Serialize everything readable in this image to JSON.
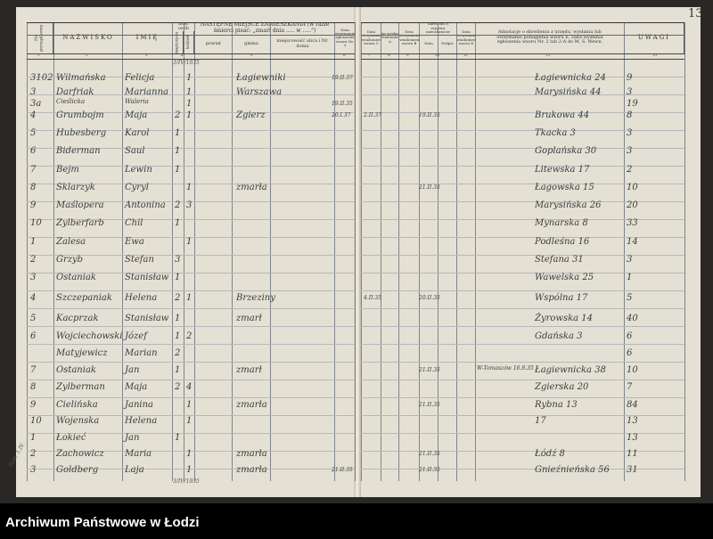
{
  "page_number": "13",
  "header": {
    "col1": "Nr porządkowy",
    "col2": "NAZWISKO",
    "col3": "IMIĘ",
    "col4": "Ilość osób",
    "col4_m": "mężczyzn",
    "col4_k": "kobiet",
    "col5": "NASTĘPNE MIEJSCE ZAMIESZKANIA (w razie śmierci pisać: „zmarł dnia ..... w .....“)",
    "col5_powiat": "powiat",
    "col5_gmina": "gmina",
    "col5_miejsc": "miejscowość ulica i Nr. domu",
    "col6": "Data otrzymania zgłoszenia wzoru Nr. 3",
    "col7": "Data otrzymania zawiadomienia wzoru C",
    "col8": "Data wysłania zawiadomienia A",
    "col9": "Data otrzymania zawiadomienia wzoru B",
    "col10": "Skreślono z rejestru mieszkańców",
    "col10_data": "Data",
    "col10_podpis": "Podpis",
    "col11": "Data otrzymania zawiadomienia wzoru D",
    "col12": "Adnotacje o skreśleniu z urzędu, wysłaniu lub otrzymaniu ponaglenia wzoru E. Data wysłania zgłoszenia wzoru Nr. 2 lub 2-A do M. S. Wewn.",
    "col13": "UWAGI",
    "numbers": [
      "1",
      "2",
      "3",
      "4",
      "5",
      "6",
      "7",
      "8",
      "9",
      "10",
      "11",
      "12",
      "13"
    ]
  },
  "top_stamp": "3/IV/1935",
  "bottom_stamp": "3/IV/1935",
  "margin_note": "Zam. 1.IV.",
  "rows": [
    {
      "no": "3102",
      "surname": "Wilmańska",
      "name": "Felicja",
      "m": "",
      "k": "1",
      "gmina": "Łagiewniki",
      "date6": "19.II.37",
      "c7": "",
      "c10": "",
      "addr": "Łagiewnicka 24",
      "house": "9"
    },
    {
      "no": "3",
      "surname": "Darfriak",
      "name": "Marianna",
      "m": "",
      "k": "1",
      "gmina": "Warszawa",
      "date6": "",
      "c7": "",
      "c10": "",
      "addr": "Marysińska 44",
      "house": "3"
    },
    {
      "no": "3a",
      "surname": "Cieślicka",
      "name": "Waleria",
      "m": "",
      "k": "1",
      "gmina": "",
      "date6": "19.II.35",
      "c7": "",
      "c10": "",
      "addr": "",
      "house": "19"
    },
    {
      "no": "4",
      "surname": "Grumbojm",
      "name": "Maja",
      "m": "2",
      "k": "1",
      "gmina": "Zgierz",
      "date6": "20.I.37",
      "c7": "2.II.37",
      "c10": "19.II.35",
      "addr": "Brukowa 44",
      "house": "8"
    },
    {
      "no": "5",
      "surname": "Hubesberg",
      "name": "Karol",
      "m": "1",
      "k": "",
      "gmina": "",
      "date6": "",
      "c7": "",
      "c10": "",
      "addr": "Tkacka 3",
      "house": "3"
    },
    {
      "no": "6",
      "surname": "Biderman",
      "name": "Saul",
      "m": "1",
      "k": "",
      "gmina": "",
      "date6": "",
      "c7": "",
      "c10": "",
      "addr": "Goplańska 30",
      "house": "3"
    },
    {
      "no": "7",
      "surname": "Bejm",
      "name": "Lewin",
      "m": "1",
      "k": "",
      "gmina": "",
      "date6": "",
      "c7": "",
      "c10": "",
      "addr": "Litewska 17",
      "house": "2"
    },
    {
      "no": "8",
      "surname": "Sklarzyk",
      "name": "Cyryl",
      "m": "",
      "k": "1",
      "gmina": "zmarła",
      "date6": "",
      "c7": "",
      "c10": "21.II.35",
      "addr": "Łagowska 15",
      "house": "10"
    },
    {
      "no": "9",
      "surname": "Maślopera",
      "name": "Antonina",
      "m": "2",
      "k": "3",
      "gmina": "",
      "date6": "",
      "c7": "",
      "c10": "",
      "addr": "Marysińska 26",
      "house": "20"
    },
    {
      "no": "10",
      "surname": "Zylberfarb",
      "name": "Chil",
      "m": "1",
      "k": "",
      "gmina": "",
      "date6": "",
      "c7": "",
      "c10": "",
      "addr": "Mynarska 8",
      "house": "33"
    },
    {
      "no": "1",
      "surname": "Zalesa",
      "name": "Ewa",
      "m": "",
      "k": "1",
      "gmina": "",
      "date6": "",
      "c7": "",
      "c10": "",
      "addr": "Podleśna 16",
      "house": "14"
    },
    {
      "no": "2",
      "surname": "Grzyb",
      "name": "Stefan",
      "m": "3",
      "k": "",
      "gmina": "",
      "date6": "",
      "c7": "",
      "c10": "",
      "addr": "Stefana 31",
      "house": "3"
    },
    {
      "no": "3",
      "surname": "Ostaniak",
      "name": "Stanisław",
      "m": "1",
      "k": "",
      "gmina": "",
      "date6": "",
      "c7": "",
      "c10": "",
      "addr": "Wawelska 25",
      "house": "1"
    },
    {
      "no": "4",
      "surname": "Szczepaniak",
      "name": "Helena",
      "m": "2",
      "k": "1",
      "gmina": "Brzeziny",
      "date6": "",
      "c7": "4.II.35",
      "c10": "20.II.35",
      "addr": "Wspólna 17",
      "house": "5"
    },
    {
      "no": "5",
      "surname": "Kacprzak",
      "name": "Stanisław",
      "m": "1",
      "k": "",
      "gmina": "zmarł",
      "date6": "",
      "c7": "",
      "c10": "",
      "addr": "Żyrowska 14",
      "house": "40"
    },
    {
      "no": "6",
      "surname": "Wojciechowski",
      "name": "Józef",
      "m": "1",
      "k": "2",
      "gmina": "",
      "date6": "",
      "c7": "",
      "c10": "",
      "addr": "Gdańska 3",
      "house": "6"
    },
    {
      "no": "",
      "surname": "Matyjewicz",
      "name": "Marian",
      "m": "2",
      "k": "",
      "gmina": "",
      "date6": "",
      "c7": "",
      "c10": "",
      "addr": "",
      "house": "6"
    },
    {
      "no": "7",
      "surname": "Ostaniak",
      "name": "Jan",
      "m": "1",
      "k": "",
      "gmina": "zmarł",
      "date6": "",
      "c7": "",
      "c10": "21.II.35",
      "addr": "Łagiewnicka 38",
      "house": "10",
      "note": "W-Tomaszów 16.8.35"
    },
    {
      "no": "8",
      "surname": "Zylberman",
      "name": "Maja",
      "m": "2",
      "k": "4",
      "gmina": "",
      "date6": "",
      "c7": "",
      "c10": "",
      "addr": "Zgierska 20",
      "house": "7"
    },
    {
      "no": "9",
      "surname": "Cielińska",
      "name": "Janina",
      "m": "",
      "k": "1",
      "gmina": "zmarła",
      "date6": "",
      "c7": "",
      "c10": "21.II.35",
      "addr": "Rybna 13",
      "house": "84"
    },
    {
      "no": "10",
      "surname": "Wojenska",
      "name": "Helena",
      "m": "",
      "k": "1",
      "gmina": "",
      "date6": "",
      "c7": "",
      "c10": "",
      "addr": "17",
      "house": "13"
    },
    {
      "no": "1",
      "surname": "Łokieć",
      "name": "Jan",
      "m": "1",
      "k": "",
      "gmina": "",
      "date6": "",
      "c7": "",
      "c10": "",
      "addr": "",
      "house": "13"
    },
    {
      "no": "2",
      "surname": "Zachowicz",
      "name": "Maria",
      "m": "",
      "k": "1",
      "gmina": "zmarła",
      "date6": "",
      "c7": "",
      "c10": "21.II.35",
      "addr": "Łódź 8",
      "house": "11"
    },
    {
      "no": "3",
      "surname": "Goldberg",
      "name": "Laja",
      "m": "",
      "k": "1",
      "gmina": "zmarła",
      "date6": "21.II.35",
      "c7": "",
      "c10": "21.II.35",
      "addr": "Gnieźnieńska 56",
      "house": "31"
    }
  ],
  "footer": {
    "archive_name": "Archiwum Państwowe w Łodzi"
  }
}
